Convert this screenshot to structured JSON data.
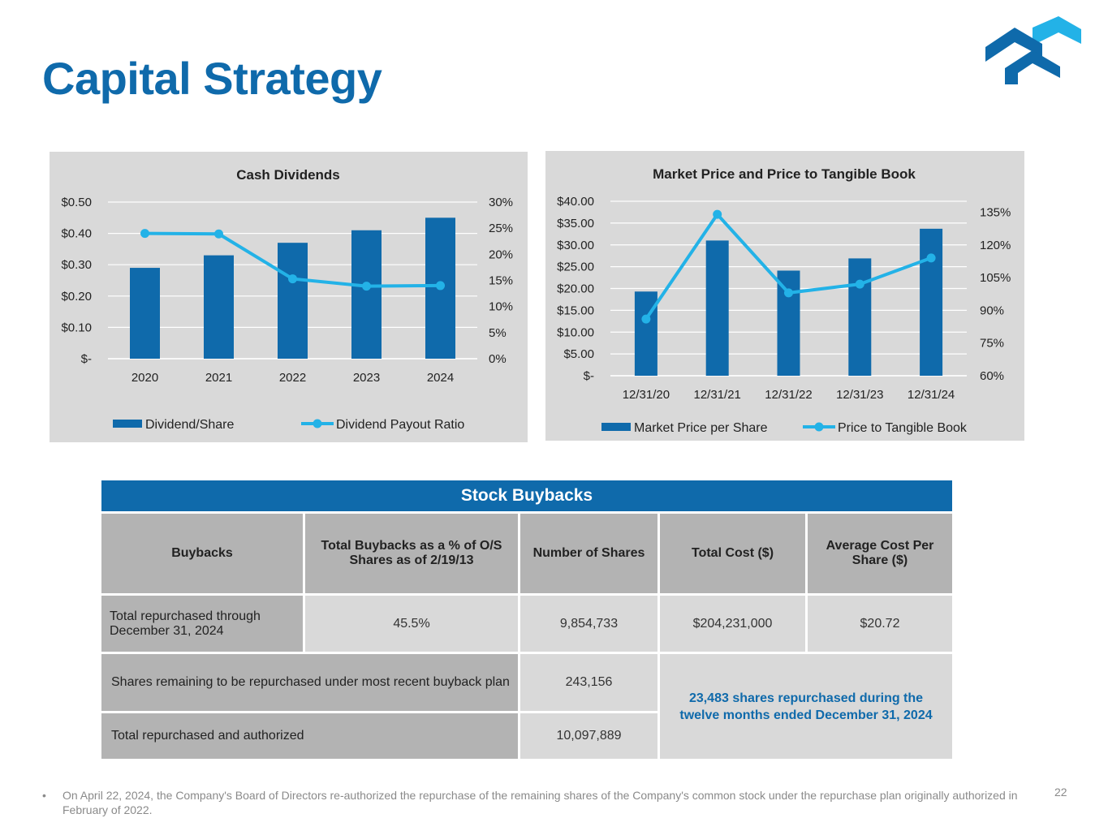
{
  "page": {
    "title": "Capital Strategy",
    "page_number": "22",
    "footnote_bullet": "•",
    "footnote": "On April 22, 2024, the Company's Board of Directors re-authorized the repurchase of the remaining shares of the Company's common stock under the repurchase plan originally authorized in February of 2022."
  },
  "colors": {
    "brand_dark": "#0f6aab",
    "brand_light": "#23b2e7",
    "panel": "#d9d9d9",
    "table_header": "#b3b3b3"
  },
  "chart_data": [
    {
      "type": "bar",
      "title": "Cash Dividends",
      "categories": [
        "2020",
        "2021",
        "2022",
        "2023",
        "2024"
      ],
      "series": [
        {
          "name": "Dividend/Share",
          "kind": "bar",
          "axis": "left",
          "values": [
            0.29,
            0.33,
            0.37,
            0.41,
            0.45
          ]
        },
        {
          "name": "Dividend Payout Ratio",
          "kind": "line",
          "axis": "right",
          "values": [
            24.0,
            23.9,
            15.3,
            13.9,
            14.0
          ]
        }
      ],
      "y_left": {
        "ylim": [
          0,
          0.5
        ],
        "ticks": [
          0,
          0.1,
          0.2,
          0.3,
          0.4,
          0.5
        ],
        "tick_labels": [
          "$-",
          "$0.10",
          "$0.20",
          "$0.30",
          "$0.40",
          "$0.50"
        ]
      },
      "y_right": {
        "ylim": [
          0,
          30
        ],
        "ticks": [
          0,
          5,
          10,
          15,
          20,
          25,
          30
        ],
        "tick_labels": [
          "0%",
          "5%",
          "10%",
          "15%",
          "20%",
          "25%",
          "30%"
        ]
      },
      "legend": "bottom",
      "grid": true
    },
    {
      "type": "bar",
      "title": "Market Price and Price to Tangible Book",
      "categories": [
        "12/31/20",
        "12/31/21",
        "12/31/22",
        "12/31/23",
        "12/31/24"
      ],
      "series": [
        {
          "name": "Market Price per Share",
          "kind": "bar",
          "axis": "left",
          "values": [
            19.3,
            31.0,
            24.1,
            26.9,
            33.7
          ]
        },
        {
          "name": "Price to Tangible Book",
          "kind": "line",
          "axis": "right",
          "values": [
            86,
            134,
            98,
            102,
            114
          ]
        }
      ],
      "y_left": {
        "ylim": [
          0,
          40
        ],
        "ticks": [
          0,
          5,
          10,
          15,
          20,
          25,
          30,
          35,
          40
        ],
        "tick_labels": [
          "$-",
          "$5.00",
          "$10.00",
          "$15.00",
          "$20.00",
          "$25.00",
          "$30.00",
          "$35.00",
          "$40.00"
        ]
      },
      "y_right": {
        "ylim": [
          60,
          140
        ],
        "ticks": [
          60,
          75,
          90,
          105,
          120,
          135
        ],
        "tick_labels": [
          "60%",
          "75%",
          "90%",
          "105%",
          "120%",
          "135%"
        ]
      },
      "legend": "bottom",
      "grid": true
    }
  ],
  "buybacks": {
    "title": "Stock Buybacks",
    "headers": {
      "buybacks": "Buybacks",
      "pct": "Total Buybacks as a % of O/S Shares as of 2/19/13",
      "shares": "Number of Shares",
      "cost": "Total Cost ($)",
      "avg": "Average Cost Per Share ($)"
    },
    "row1": {
      "label": "Total repurchased through December 31, 2024",
      "pct": "45.5%",
      "shares": "9,854,733",
      "cost": "$204,231,000",
      "avg": "$20.72"
    },
    "row2": {
      "label": "Shares remaining to be repurchased under most recent buyback plan",
      "shares": "243,156"
    },
    "row3": {
      "label": "Total repurchased and authorized",
      "shares": "10,097,889"
    },
    "note": "23,483 shares repurchased during the twelve months ended December 31, 2024"
  }
}
